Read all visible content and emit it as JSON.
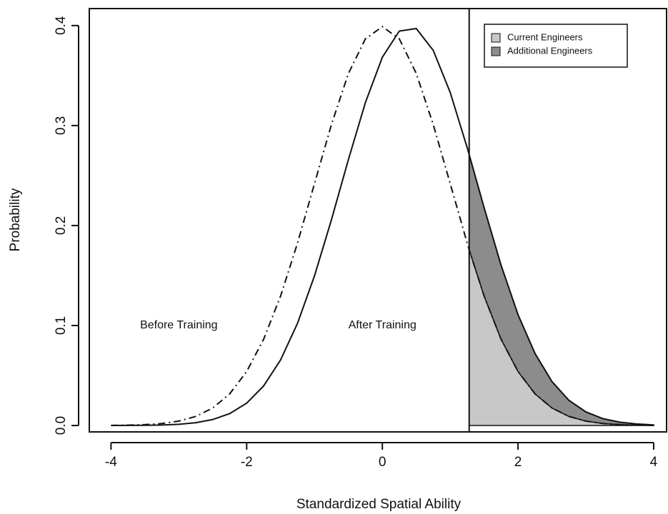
{
  "chart_data": {
    "type": "density",
    "xlabel": "Standardized Spatial Ability",
    "ylabel": "Probability",
    "x": [
      -4,
      -3.75,
      -3.5,
      -3.25,
      -3,
      -2.75,
      -2.5,
      -2.25,
      -2,
      -1.75,
      -1.5,
      -1.25,
      -1,
      -0.75,
      -0.5,
      -0.25,
      0,
      0.25,
      0.5,
      0.75,
      1,
      1.25,
      1.28,
      1.5,
      1.75,
      2,
      2.25,
      2.5,
      2.75,
      3,
      3.25,
      3.5,
      3.75,
      4
    ],
    "series": [
      {
        "style": "dashdot",
        "color": "#111111",
        "values": [
          0.0001,
          0.0004,
          0.0009,
          0.002,
          0.0044,
          0.0091,
          0.0175,
          0.0317,
          0.054,
          0.0863,
          0.1295,
          0.1826,
          0.242,
          0.3011,
          0.3521,
          0.3867,
          0.3989,
          0.3867,
          0.3521,
          0.3011,
          0.242,
          0.1826,
          0.1758,
          0.1295,
          0.0863,
          0.054,
          0.0317,
          0.0175,
          0.0091,
          0.0044,
          0.002,
          0.0009,
          0.0004,
          0.0001
        ]
      },
      {
        "style": "solid",
        "color": "#111111",
        "values": [
          0.0,
          0.0001,
          0.0002,
          0.0005,
          0.0012,
          0.0028,
          0.006,
          0.0119,
          0.0224,
          0.0396,
          0.0656,
          0.1023,
          0.1497,
          0.2059,
          0.2661,
          0.323,
          0.3683,
          0.3945,
          0.397,
          0.3752,
          0.3332,
          0.278,
          0.2709,
          0.2179,
          0.1604,
          0.1109,
          0.0721,
          0.044,
          0.0252,
          0.0136,
          0.0069,
          0.0033,
          0.0015,
          0.0006
        ]
      }
    ],
    "threshold": 1.28,
    "shading": [
      {
        "name": "Current Engineers",
        "color": "#c8c8c8"
      },
      {
        "name": "Additional Engineers",
        "color": "#8c8c8c"
      }
    ],
    "annotations": [
      {
        "text": "Before Training",
        "x": -3,
        "y": 0.1
      },
      {
        "text": "After Training",
        "x": 0,
        "y": 0.1
      }
    ],
    "legend": "top-right",
    "xlim": [
      -4.32,
      4.19
    ],
    "ylim": [
      -0.0064,
      0.417
    ],
    "xticks": [
      -4,
      -2,
      0,
      2,
      4
    ],
    "yticks": [
      {
        "value": 0,
        "label": "0.0"
      },
      0.1,
      0.2,
      0.3,
      0.4
    ]
  }
}
